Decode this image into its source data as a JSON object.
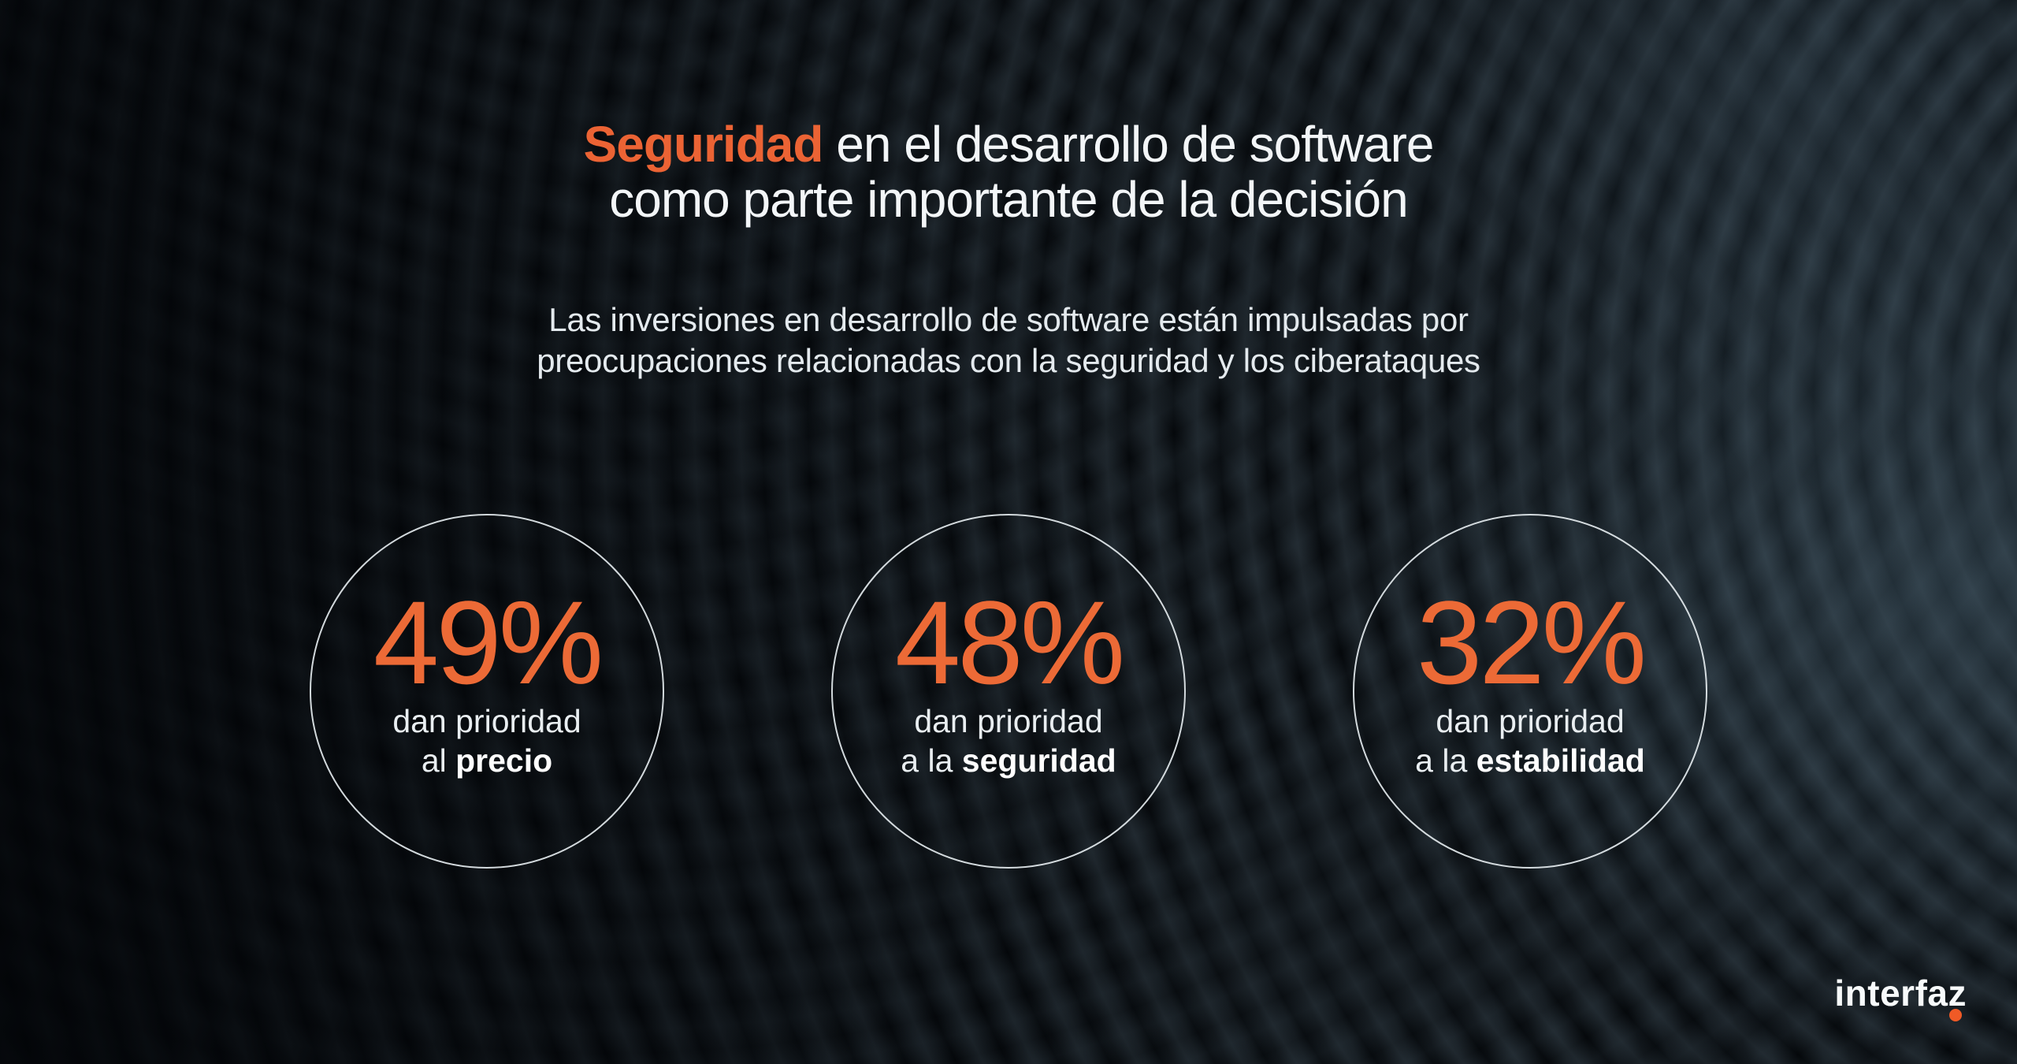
{
  "slide": {
    "title": {
      "highlight": "Seguridad",
      "rest": " en el desarrollo de software",
      "line2": "como parte importante de la decisión"
    },
    "subtitle": {
      "line1": "Las inversiones en desarrollo de software están impulsadas por",
      "line2": "preocupaciones relacionadas con la seguridad y los ciberataques"
    }
  },
  "stats": [
    {
      "value": "49%",
      "label_line1": "dan prioridad",
      "label_line2_prefix": "al ",
      "label_line2_bold": "precio"
    },
    {
      "value": "48%",
      "label_line1": "dan prioridad",
      "label_line2_prefix": "a la ",
      "label_line2_bold": "seguridad"
    },
    {
      "value": "32%",
      "label_line1": "dan prioridad",
      "label_line2_prefix": "a la ",
      "label_line2_bold": "estabilidad"
    }
  ],
  "logo": {
    "text": "interfaz"
  },
  "colors": {
    "accent": "#EB6334",
    "number_orange": "#EC6A36",
    "logo_dot": "#F05A26",
    "background": "#05080B",
    "heading_text": "#F3F6F8",
    "body_text": "#E4EAEE",
    "circle_border": "#E4EAEE"
  },
  "chart_data": {
    "type": "table",
    "title": "Seguridad en el desarrollo de software como parte importante de la decisión",
    "subtitle": "Las inversiones en desarrollo de software están impulsadas por preocupaciones relacionadas con la seguridad y los ciberataques",
    "categories": [
      "dan prioridad al precio",
      "dan prioridad a la seguridad",
      "dan prioridad a la estabilidad"
    ],
    "values": [
      49,
      48,
      32
    ],
    "unit": "%",
    "legend_position": "none",
    "grid": false
  }
}
